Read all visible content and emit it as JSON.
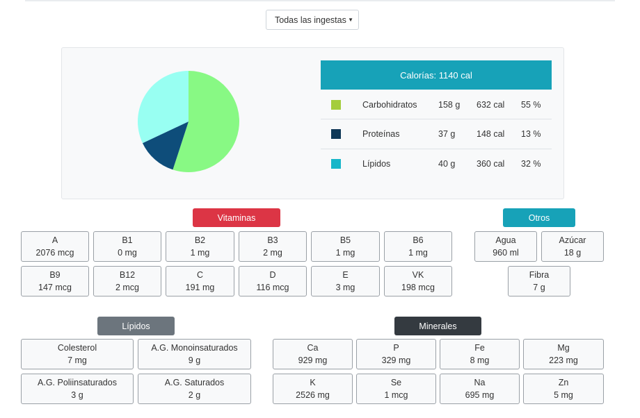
{
  "filter": {
    "selected": "Todas las ingestas"
  },
  "calories": {
    "header": "Calorías: 1140 cal",
    "macros": [
      {
        "name": "Carbohidratos",
        "grams": "158 g",
        "cal": "632 cal",
        "pct": "55 %",
        "color": "#a4cd3c"
      },
      {
        "name": "Proteínas",
        "grams": "37 g",
        "cal": "148 cal",
        "pct": "13 %",
        "color": "#0e3756"
      },
      {
        "name": "Lípidos",
        "grams": "40 g",
        "cal": "360 cal",
        "pct": "32 %",
        "color": "#17b6c9"
      }
    ]
  },
  "chart_data": {
    "type": "pie",
    "categories": [
      "Carbohidratos",
      "Proteínas",
      "Lípidos"
    ],
    "values": [
      55,
      13,
      32
    ],
    "colors": [
      "#88f984",
      "#0e4d7a",
      "#98fff2"
    ]
  },
  "vitaminas": {
    "label": "Vitaminas",
    "color": "#dc3545",
    "items": [
      {
        "name": "A",
        "value": "2076 mcg"
      },
      {
        "name": "B1",
        "value": "0 mg"
      },
      {
        "name": "B2",
        "value": "1 mg"
      },
      {
        "name": "B3",
        "value": "2 mg"
      },
      {
        "name": "B5",
        "value": "1 mg"
      },
      {
        "name": "B6",
        "value": "1 mg"
      },
      {
        "name": "B9",
        "value": "147 mcg"
      },
      {
        "name": "B12",
        "value": "2 mcg"
      },
      {
        "name": "C",
        "value": "191 mg"
      },
      {
        "name": "D",
        "value": "116 mcg"
      },
      {
        "name": "E",
        "value": "3 mg"
      },
      {
        "name": "VK",
        "value": "198 mcg"
      }
    ]
  },
  "otros": {
    "label": "Otros",
    "color": "#17a2b8",
    "items": [
      {
        "name": "Agua",
        "value": "960 ml"
      },
      {
        "name": "Azúcar",
        "value": "18 g"
      },
      {
        "name": "Fibra",
        "value": "7 g"
      }
    ]
  },
  "lipidos": {
    "label": "Lípidos",
    "color": "#6c757d",
    "items": [
      {
        "name": "Colesterol",
        "value": "7 mg"
      },
      {
        "name": "A.G. Monoinsaturados",
        "value": "9 g"
      },
      {
        "name": "A.G. Poliinsaturados",
        "value": "3 g"
      },
      {
        "name": "A.G. Saturados",
        "value": "2 g"
      }
    ]
  },
  "minerales": {
    "label": "Minerales",
    "color": "#343a40",
    "items": [
      {
        "name": "Ca",
        "value": "929 mg"
      },
      {
        "name": "P",
        "value": "329 mg"
      },
      {
        "name": "Fe",
        "value": "8 mg"
      },
      {
        "name": "Mg",
        "value": "223 mg"
      },
      {
        "name": "K",
        "value": "2526 mg"
      },
      {
        "name": "Se",
        "value": "1 mcg"
      },
      {
        "name": "Na",
        "value": "695 mg"
      },
      {
        "name": "Zn",
        "value": "5 mg"
      }
    ]
  }
}
